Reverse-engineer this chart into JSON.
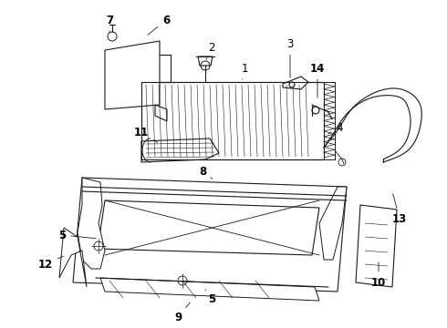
{
  "background_color": "#ffffff",
  "line_color": "#1a1a1a",
  "label_color": "#000000",
  "fig_width": 4.9,
  "fig_height": 3.6,
  "dpi": 100,
  "label_fontsize": 8.5
}
